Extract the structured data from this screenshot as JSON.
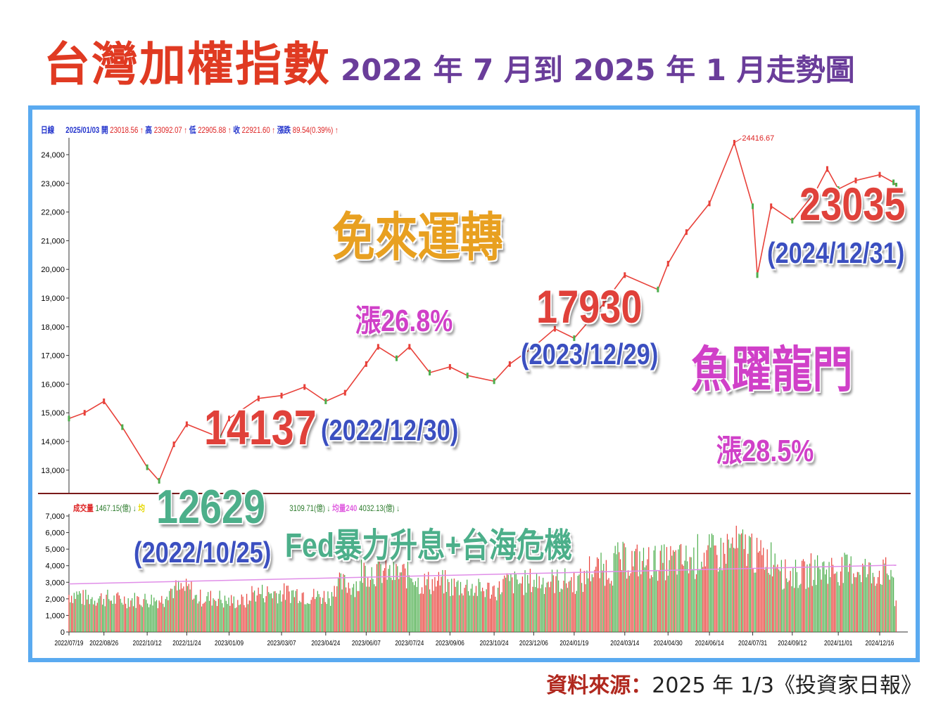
{
  "title": {
    "main": "台灣加權指數",
    "sub": "2022 年 7 月到 2025 年 1 月走勢圖"
  },
  "source": {
    "label": "資料來源：",
    "text": "2025 年 1/3《投資家日報》"
  },
  "price_header": {
    "period": "日線",
    "date": "2025/01/03",
    "open_label": "開",
    "open": "23018.56 ↑",
    "high_label": "高",
    "high": "23092.07 ↑",
    "low_label": "低",
    "low": "22905.88 ↑",
    "close_label": "收",
    "close": "22921.60 ↑",
    "change_label": "漲跌",
    "change": "89.54(0.39%) ↑"
  },
  "volume_header": {
    "label": "成交量",
    "value": "1467.15(億) ↓",
    "ma_label": "均",
    "ma_value": "3109.71(億) ↓",
    "ma240_label": "均量240",
    "ma240_value": "4032.13(億) ↓"
  },
  "annotations": {
    "low": "12629",
    "low_date": "(2022/10/25)",
    "low_reason": "Fed暴力升息+台海危機",
    "y2022": "14137",
    "y2022_date": "(2022/12/30)",
    "rabbit": "免來運轉",
    "rabbit_pct": "漲26.8%",
    "y2023": "17930",
    "y2023_date": "(2023/12/29)",
    "dragon": "魚躍龍門",
    "dragon_pct": "漲28.5%",
    "y2024": "23035",
    "y2024_date": "(2024/12/31)",
    "peak": "24416.67"
  },
  "chart_data": {
    "type": "line",
    "title": "台灣加權指數 2022 年 7 月到 2025 年 1 月走勢圖",
    "price": {
      "ylim": [
        12500,
        24600
      ],
      "yticks": [
        "13,000",
        "14,000",
        "15,000",
        "16,000",
        "17,000",
        "18,000",
        "19,000",
        "20,000",
        "21,000",
        "22,000",
        "23,000",
        "24,000"
      ],
      "ytick_values": [
        13000,
        14000,
        15000,
        16000,
        17000,
        18000,
        19000,
        20000,
        21000,
        22000,
        23000,
        24000
      ],
      "points": [
        [
          "2022-07-19",
          14800
        ],
        [
          "2022-08-05",
          15000
        ],
        [
          "2022-08-26",
          15400
        ],
        [
          "2022-09-15",
          14500
        ],
        [
          "2022-10-12",
          13100
        ],
        [
          "2022-10-25",
          12629
        ],
        [
          "2022-11-10",
          13900
        ],
        [
          "2022-11-24",
          14600
        ],
        [
          "2022-12-30",
          14137
        ],
        [
          "2023-01-09",
          14800
        ],
        [
          "2023-02-10",
          15500
        ],
        [
          "2023-03-07",
          15600
        ],
        [
          "2023-04-01",
          15900
        ],
        [
          "2023-04-24",
          15400
        ],
        [
          "2023-05-15",
          15700
        ],
        [
          "2023-06-07",
          16700
        ],
        [
          "2023-06-20",
          17300
        ],
        [
          "2023-07-10",
          16900
        ],
        [
          "2023-07-24",
          17300
        ],
        [
          "2023-08-15",
          16400
        ],
        [
          "2023-09-06",
          16600
        ],
        [
          "2023-09-25",
          16300
        ],
        [
          "2023-10-24",
          16100
        ],
        [
          "2023-11-10",
          16700
        ],
        [
          "2023-12-06",
          17300
        ],
        [
          "2023-12-29",
          17930
        ],
        [
          "2024-01-19",
          17600
        ],
        [
          "2024-02-20",
          18800
        ],
        [
          "2024-03-14",
          19800
        ],
        [
          "2024-04-19",
          19300
        ],
        [
          "2024-04-30",
          20200
        ],
        [
          "2024-05-20",
          21300
        ],
        [
          "2024-06-14",
          22300
        ],
        [
          "2024-07-11",
          24416.67
        ],
        [
          "2024-07-31",
          22200
        ],
        [
          "2024-08-05",
          19800
        ],
        [
          "2024-08-20",
          22200
        ],
        [
          "2024-09-12",
          21700
        ],
        [
          "2024-10-07",
          22700
        ],
        [
          "2024-10-20",
          23500
        ],
        [
          "2024-11-01",
          22800
        ],
        [
          "2024-11-20",
          23100
        ],
        [
          "2024-12-16",
          23300
        ],
        [
          "2024-12-31",
          23035
        ],
        [
          "2025-01-03",
          22921.6
        ]
      ]
    },
    "volume": {
      "ylim": [
        0,
        7000
      ],
      "yticks": [
        "0",
        "1,000",
        "2,000",
        "3,000",
        "4,000",
        "5,000",
        "6,000",
        "7,000"
      ],
      "ytick_values": [
        0,
        1000,
        2000,
        3000,
        4000,
        5000,
        6000,
        7000
      ],
      "unit": "億",
      "monthly_avg": [
        [
          "2022-07",
          2200
        ],
        [
          "2022-08",
          2000
        ],
        [
          "2022-09",
          1900
        ],
        [
          "2022-10",
          1900
        ],
        [
          "2022-11",
          2500
        ],
        [
          "2022-12",
          2000
        ],
        [
          "2023-01",
          1800
        ],
        [
          "2023-02",
          2300
        ],
        [
          "2023-03",
          2300
        ],
        [
          "2023-04",
          2100
        ],
        [
          "2023-05",
          2800
        ],
        [
          "2023-06",
          3600
        ],
        [
          "2023-07",
          3400
        ],
        [
          "2023-08",
          2900
        ],
        [
          "2023-09",
          2700
        ],
        [
          "2023-10",
          2500
        ],
        [
          "2023-11",
          2900
        ],
        [
          "2023-12",
          3000
        ],
        [
          "2024-01",
          3000
        ],
        [
          "2024-02",
          3700
        ],
        [
          "2024-03",
          4200
        ],
        [
          "2024-04",
          4100
        ],
        [
          "2024-05",
          4200
        ],
        [
          "2024-06",
          4600
        ],
        [
          "2024-07",
          5000
        ],
        [
          "2024-08",
          4400
        ],
        [
          "2024-09",
          3400
        ],
        [
          "2024-10",
          3700
        ],
        [
          "2024-11",
          3700
        ],
        [
          "2024-12",
          3500
        ],
        [
          "2025-01",
          1467
        ]
      ],
      "ma240_start": 2900,
      "ma240_end": 4032
    },
    "x_ticks": [
      "2022/07/19",
      "2022/08/26",
      "2022/10/12",
      "2022/11/24",
      "2023/01/09",
      "2023/03/07",
      "2023/04/24",
      "2023/06/07",
      "2023/07/24",
      "2023/09/06",
      "2023/10/24",
      "2023/12/06",
      "2024/01/19",
      "2024/03/14",
      "2024/04/30",
      "2024/06/14",
      "2024/07/31",
      "2024/09/12",
      "2024/11/01",
      "2024/12/16"
    ]
  },
  "colors": {
    "title": "#e03a22",
    "subtitle": "#6a3d9a",
    "frame": "#5aaaf0",
    "up": "#e8413a",
    "down": "#4cae4c",
    "ma240": "#e08ee8"
  }
}
